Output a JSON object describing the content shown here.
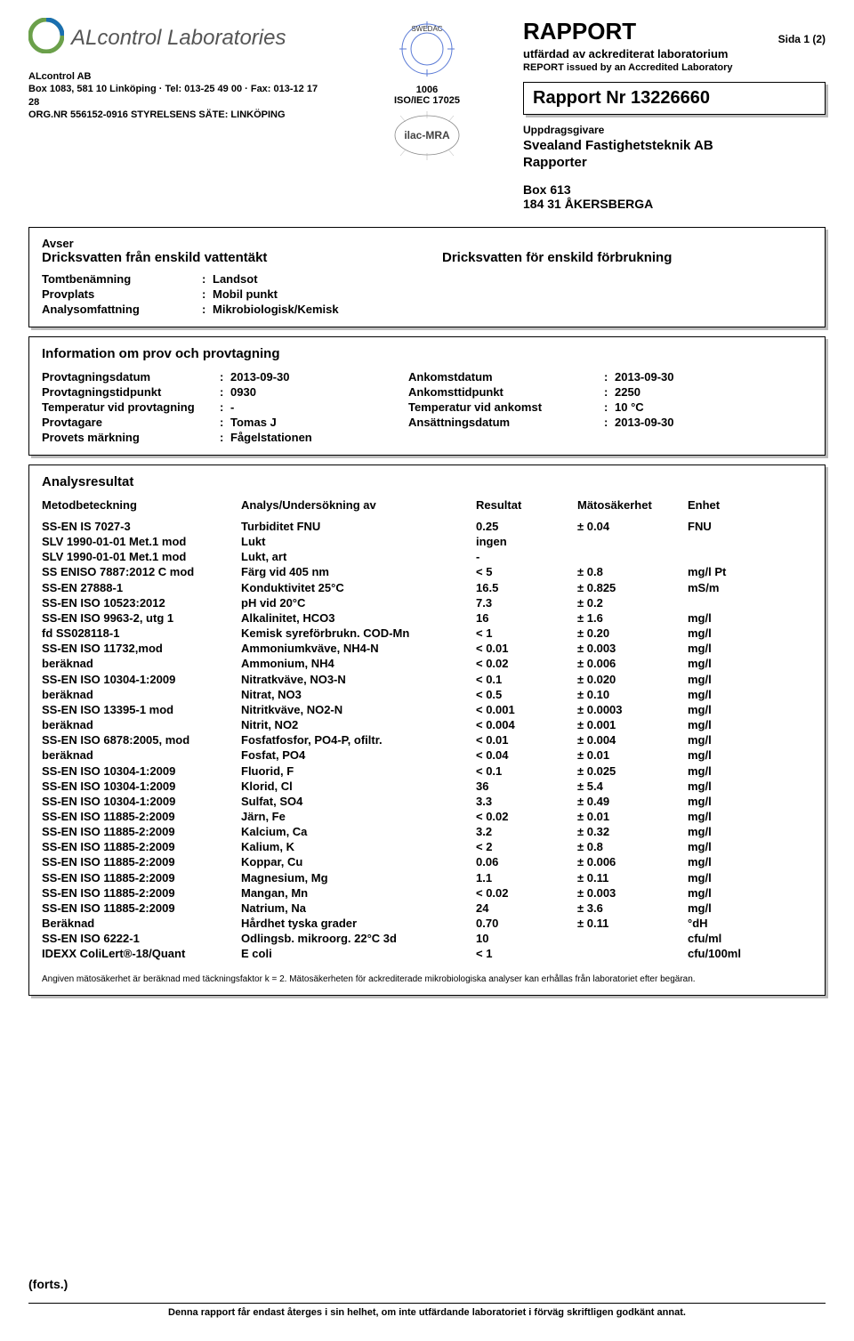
{
  "header": {
    "lab_display_name": "ALcontrol Laboratories",
    "company": "ALcontrol AB",
    "address_line": "Box 1083, 581 10  Linköping  ·  Tel: 013-25 49 00  ·  Fax: 013-12 17 28",
    "orgnr_line": "ORG.NR 556152-0916  STYRELSENS SÄTE: LINKÖPING",
    "accred_number": "1006",
    "accred_standard": "ISO/IEC 17025"
  },
  "report_header": {
    "title": "RAPPORT",
    "page_indicator": "Sida  1 (2)",
    "subtitle1": "utfärdad av ackrediterat laboratorium",
    "subtitle2": "REPORT issued by an Accredited Laboratory",
    "report_nr_label": "Rapport Nr 13226660"
  },
  "client": {
    "label": "Uppdragsgivare",
    "name1": "Svealand Fastighetsteknik AB",
    "name2": "Rapporter",
    "addr1": "Box 613",
    "addr2": "184 31  ÅKERSBERGA"
  },
  "avser": {
    "label": "Avser",
    "left": "Dricksvatten från enskild vattentäkt",
    "right": "Dricksvatten för enskild förbrukning",
    "tomt_label": "Tomtbenämning",
    "tomt_val": "Landsot",
    "provplats_label": "Provplats",
    "provplats_val": "Mobil punkt",
    "analys_label": "Analysomfattning",
    "analys_val": "Mikrobiologisk/Kemisk"
  },
  "sampling": {
    "title": "Information om prov och provtagning",
    "rows": [
      {
        "l1": "Provtagningsdatum",
        "v1": "2013-09-30",
        "l2": "Ankomstdatum",
        "v2": "2013-09-30"
      },
      {
        "l1": "Provtagningstidpunkt",
        "v1": "0930",
        "l2": "Ankomsttidpunkt",
        "v2": "2250"
      },
      {
        "l1": "Temperatur vid provtagning",
        "v1": "-",
        "l2": "Temperatur vid ankomst",
        "v2": "10 °C"
      },
      {
        "l1": "Provtagare",
        "v1": "Tomas J",
        "l2": "Ansättningsdatum",
        "v2": "2013-09-30"
      },
      {
        "l1": "Provets märkning",
        "v1": "Fågelstationen",
        "l2": "",
        "v2": ""
      }
    ]
  },
  "results": {
    "title": "Analysresultat",
    "head": {
      "c1": "Metodbeteckning",
      "c2": "Analys/Undersökning av",
      "c3": "Resultat",
      "c4": "Mätosäkerhet",
      "c5": "Enhet"
    },
    "rows": [
      {
        "c1": "SS-EN IS 7027-3",
        "c2": "Turbiditet FNU",
        "c3": "0.25",
        "c4": "± 0.04",
        "c5": "FNU"
      },
      {
        "c1": "SLV 1990-01-01 Met.1 mod",
        "c2": "Lukt",
        "c3": "ingen",
        "c4": "",
        "c5": ""
      },
      {
        "c1": "SLV 1990-01-01 Met.1 mod",
        "c2": "Lukt, art",
        "c3": "-",
        "c4": "",
        "c5": ""
      },
      {
        "c1": "SS ENISO 7887:2012 C mod",
        "c2": "Färg vid 405 nm",
        "c3": "< 5",
        "c4": "± 0.8",
        "c5": "mg/l Pt"
      },
      {
        "c1": "SS-EN 27888-1",
        "c2": "Konduktivitet 25°C",
        "c3": "16.5",
        "c4": "± 0.825",
        "c5": "mS/m"
      },
      {
        "c1": "SS-EN ISO 10523:2012",
        "c2": "pH vid 20°C",
        "c3": "7.3",
        "c4": "± 0.2",
        "c5": ""
      },
      {
        "c1": "SS-EN ISO 9963-2, utg 1",
        "c2": "Alkalinitet, HCO3",
        "c3": "16",
        "c4": "± 1.6",
        "c5": "mg/l"
      },
      {
        "c1": "fd SS028118-1",
        "c2": "Kemisk syreförbrukn. COD-Mn",
        "c3": "< 1",
        "c4": "± 0.20",
        "c5": "mg/l"
      },
      {
        "c1": "SS-EN ISO 11732,mod",
        "c2": "Ammoniumkväve, NH4-N",
        "c3": "< 0.01",
        "c4": "± 0.003",
        "c5": "mg/l"
      },
      {
        "c1": "beräknad",
        "c2": "Ammonium, NH4",
        "c3": "< 0.02",
        "c4": "± 0.006",
        "c5": "mg/l"
      },
      {
        "c1": "SS-EN ISO 10304-1:2009",
        "c2": "Nitratkväve, NO3-N",
        "c3": "< 0.1",
        "c4": "± 0.020",
        "c5": "mg/l"
      },
      {
        "c1": "beräknad",
        "c2": "Nitrat, NO3",
        "c3": "< 0.5",
        "c4": "± 0.10",
        "c5": "mg/l"
      },
      {
        "c1": "SS-EN ISO 13395-1 mod",
        "c2": "Nitritkväve, NO2-N",
        "c3": "< 0.001",
        "c4": "± 0.0003",
        "c5": "mg/l"
      },
      {
        "c1": "beräknad",
        "c2": "Nitrit, NO2",
        "c3": "< 0.004",
        "c4": "± 0.001",
        "c5": "mg/l"
      },
      {
        "c1": "SS-EN ISO 6878:2005, mod",
        "c2": "Fosfatfosfor, PO4-P, ofiltr.",
        "c3": "< 0.01",
        "c4": "± 0.004",
        "c5": "mg/l"
      },
      {
        "c1": "beräknad",
        "c2": "Fosfat, PO4",
        "c3": "< 0.04",
        "c4": "± 0.01",
        "c5": "mg/l"
      },
      {
        "c1": "SS-EN ISO 10304-1:2009",
        "c2": "Fluorid, F",
        "c3": "< 0.1",
        "c4": "± 0.025",
        "c5": "mg/l"
      },
      {
        "c1": "SS-EN ISO 10304-1:2009",
        "c2": "Klorid, Cl",
        "c3": "36",
        "c4": "± 5.4",
        "c5": "mg/l"
      },
      {
        "c1": "SS-EN ISO 10304-1:2009",
        "c2": "Sulfat, SO4",
        "c3": "3.3",
        "c4": "± 0.49",
        "c5": "mg/l"
      },
      {
        "c1": "SS-EN ISO 11885-2:2009",
        "c2": "Järn, Fe",
        "c3": "< 0.02",
        "c4": "± 0.01",
        "c5": "mg/l"
      },
      {
        "c1": "SS-EN ISO 11885-2:2009",
        "c2": "Kalcium, Ca",
        "c3": "3.2",
        "c4": "± 0.32",
        "c5": "mg/l"
      },
      {
        "c1": "SS-EN ISO 11885-2:2009",
        "c2": "Kalium, K",
        "c3": "< 2",
        "c4": "± 0.8",
        "c5": "mg/l"
      },
      {
        "c1": "SS-EN ISO 11885-2:2009",
        "c2": "Koppar, Cu",
        "c3": "0.06",
        "c4": "± 0.006",
        "c5": "mg/l"
      },
      {
        "c1": "SS-EN ISO 11885-2:2009",
        "c2": "Magnesium, Mg",
        "c3": "1.1",
        "c4": "± 0.11",
        "c5": "mg/l"
      },
      {
        "c1": "SS-EN ISO 11885-2:2009",
        "c2": "Mangan, Mn",
        "c3": "< 0.02",
        "c4": "± 0.003",
        "c5": "mg/l"
      },
      {
        "c1": "SS-EN ISO 11885-2:2009",
        "c2": "Natrium, Na",
        "c3": "24",
        "c4": "± 3.6",
        "c5": "mg/l"
      },
      {
        "c1": "Beräknad",
        "c2": "Hårdhet tyska grader",
        "c3": "0.70",
        "c4": "± 0.11",
        "c5": "°dH"
      },
      {
        "c1": "SS-EN ISO 6222-1",
        "c2": "Odlingsb. mikroorg. 22°C 3d",
        "c3": "10",
        "c4": "",
        "c5": "cfu/ml"
      },
      {
        "c1": "IDEXX ColiLert®-18/Quant",
        "c2": "E coli",
        "c3": "< 1",
        "c4": "",
        "c5": "cfu/100ml"
      }
    ]
  },
  "footnote": "Angiven mätosäkerhet är beräknad med täckningsfaktor k = 2. Mätosäkerheten för ackrediterade mikrobiologiska analyser kan erhållas från laboratoriet efter begäran.",
  "forts": "(forts.)",
  "bottom": "Denna rapport får endast återges i sin helhet, om inte utfärdande laboratoriet i förväg skriftligen godkänt annat."
}
